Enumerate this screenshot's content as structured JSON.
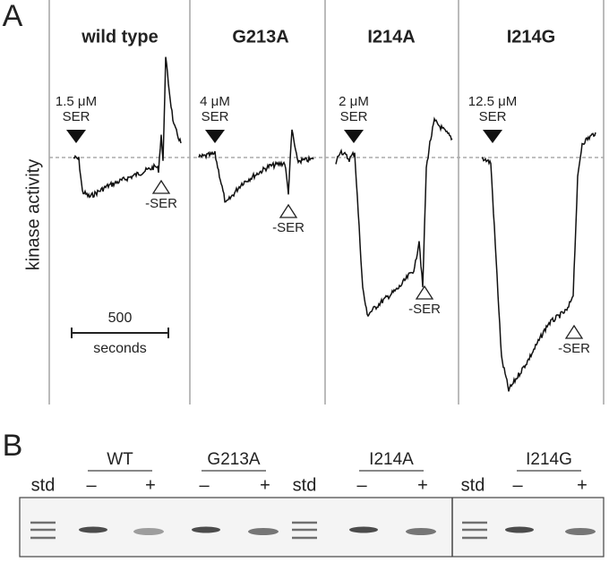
{
  "panel_a": {
    "label": "A",
    "y_label": "kinase activity",
    "panels": [
      {
        "title": "wild type",
        "dose": "1.5 μM",
        "on": "SER",
        "off": "-SER"
      },
      {
        "title": "G213A",
        "dose": "4 μM",
        "on": "SER",
        "off": "-SER"
      },
      {
        "title": "I214A",
        "dose": "2 μM",
        "on": "SER",
        "off": "-SER"
      },
      {
        "title": "I214G",
        "dose": "12.5 μM",
        "on": "SER",
        "off": "-SER"
      }
    ],
    "scale_bar": {
      "value": "500",
      "unit": "seconds"
    }
  },
  "panel_b": {
    "label": "B",
    "groups": [
      {
        "title": "WT",
        "minus": "–",
        "plus": "+"
      },
      {
        "title": "G213A",
        "minus": "–",
        "plus": "+"
      },
      {
        "title": "I214A",
        "minus": "–",
        "plus": "+"
      },
      {
        "title": "I214G",
        "minus": "–",
        "plus": "+"
      }
    ],
    "std": [
      "std",
      "std",
      "std"
    ]
  }
}
